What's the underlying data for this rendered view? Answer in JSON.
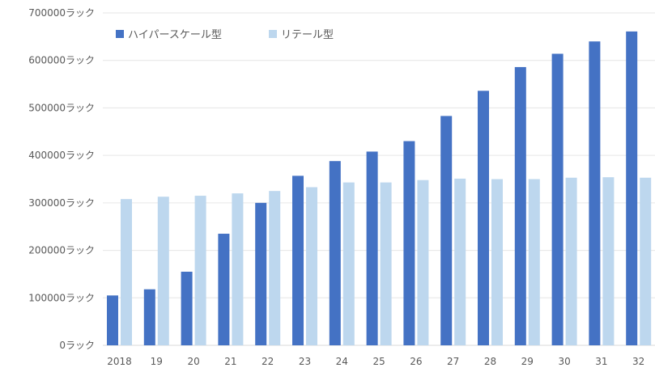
{
  "chart_data": {
    "type": "bar",
    "categories": [
      "2018",
      "19",
      "20",
      "21",
      "22",
      "23",
      "24",
      "25",
      "26",
      "27",
      "28",
      "29",
      "30",
      "31",
      "32"
    ],
    "series": [
      {
        "name": "ハイパースケール型",
        "color": "#4472C4",
        "values": [
          105000,
          118000,
          155000,
          235000,
          300000,
          357000,
          388000,
          408000,
          430000,
          483000,
          536000,
          586000,
          614000,
          640000,
          661000
        ]
      },
      {
        "name": "リテール型",
        "color": "#BDD7EE",
        "values": [
          308000,
          313000,
          315000,
          320000,
          325000,
          333000,
          343000,
          343000,
          348000,
          351000,
          350000,
          350000,
          353000,
          354000,
          353000
        ]
      }
    ],
    "y_ticks": [
      "0ラック",
      "100000ラック",
      "200000ラック",
      "300000ラック",
      "400000ラック",
      "500000ラック",
      "600000ラック",
      "700000ラック"
    ],
    "ylim": [
      0,
      700000
    ],
    "grid": true,
    "legend_position": "top-left"
  }
}
